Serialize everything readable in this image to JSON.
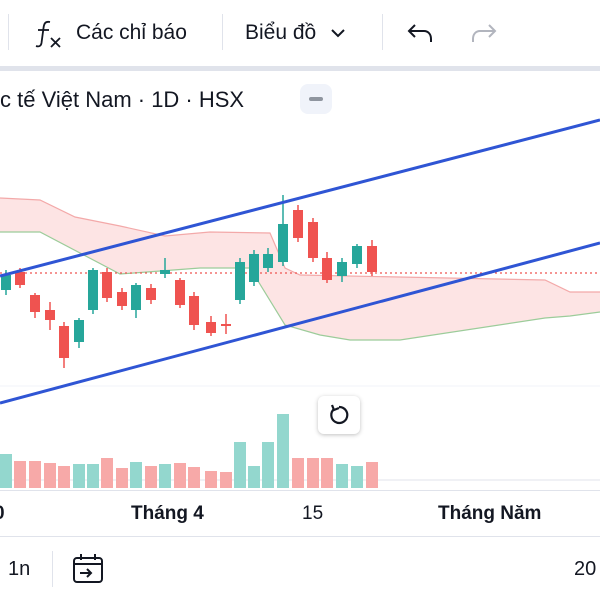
{
  "toolbar": {
    "indicators_label": "Các chỉ báo",
    "chart_type_label": "Biểu đồ"
  },
  "legend": {
    "symbol_text": "c tế Việt Nam · 1D · HSX"
  },
  "time_axis": {
    "labels": [
      "0",
      "Tháng 4",
      "15",
      "Tháng Năm"
    ]
  },
  "bottom_bar": {
    "range_label": "1n",
    "right_label": "20"
  },
  "colors": {
    "up": "#26a69a",
    "down": "#ef5350",
    "channel": "#2f55d4",
    "cloud": "#fde2e2"
  },
  "icons": [
    "fx-icon",
    "chevron-down-icon",
    "undo-icon",
    "redo-icon",
    "minus-icon",
    "reset-icon",
    "calendar-icon"
  ]
}
